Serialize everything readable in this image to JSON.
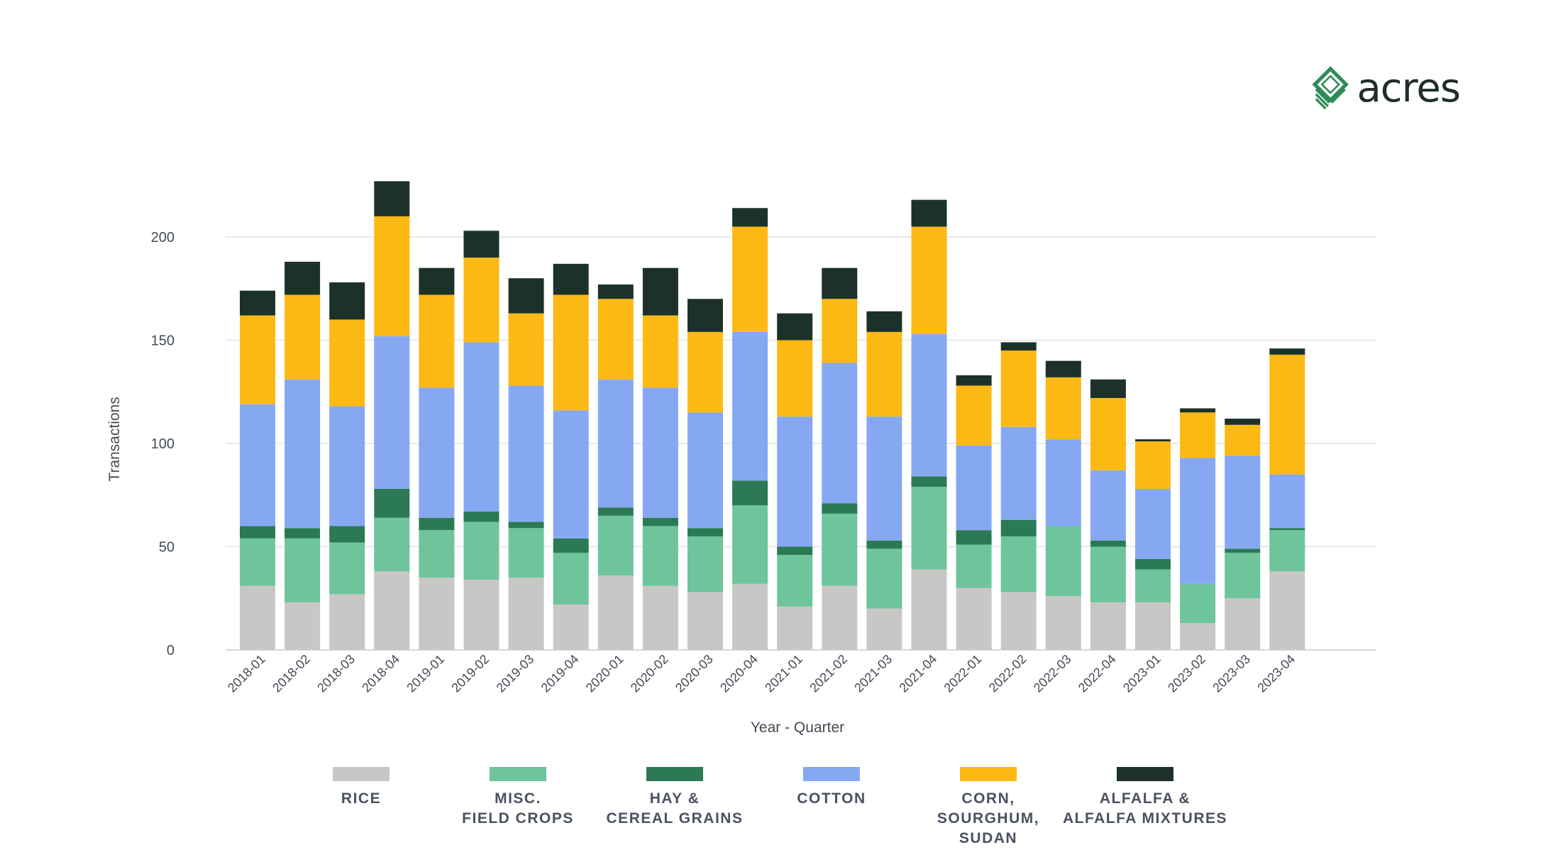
{
  "brand": {
    "name": "acres",
    "logo_color": "#2e8b57"
  },
  "chart_data": {
    "type": "bar",
    "stacked": true,
    "title": "",
    "xlabel": "Year - Quarter",
    "ylabel": "Transactions",
    "ylim": [
      0,
      230
    ],
    "yticks": [
      0,
      50,
      100,
      150,
      200
    ],
    "grid": true,
    "legend_position": "bottom",
    "categories": [
      "2018-01",
      "2018-02",
      "2018-03",
      "2018-04",
      "2019-01",
      "2019-02",
      "2019-03",
      "2019-04",
      "2020-01",
      "2020-02",
      "2020-03",
      "2020-04",
      "2021-01",
      "2021-02",
      "2021-03",
      "2021-04",
      "2022-01",
      "2022-02",
      "2022-03",
      "2022-04",
      "2023-01",
      "2023-02",
      "2023-03",
      "2023-04"
    ],
    "series": [
      {
        "name": "RICE",
        "label_lines": [
          "RICE"
        ],
        "color": "#c8c7c5",
        "values": [
          31,
          23,
          27,
          38,
          35,
          34,
          35,
          22,
          36,
          31,
          28,
          32,
          21,
          31,
          20,
          39,
          30,
          28,
          26,
          23,
          23,
          13,
          25,
          38
        ]
      },
      {
        "name": "MISC. FIELD CROPS",
        "label_lines": [
          "MISC.",
          "FIELD CROPS"
        ],
        "color": "#6ec49b",
        "values": [
          23,
          31,
          25,
          26,
          23,
          28,
          24,
          25,
          29,
          29,
          27,
          38,
          25,
          35,
          29,
          40,
          21,
          27,
          34,
          27,
          16,
          19,
          22,
          20
        ]
      },
      {
        "name": "HAY & CEREAL GRAINS",
        "label_lines": [
          "HAY &",
          "CEREAL GRAINS"
        ],
        "color": "#2b7a55",
        "values": [
          6,
          5,
          8,
          14,
          6,
          5,
          3,
          7,
          4,
          4,
          4,
          12,
          4,
          5,
          4,
          5,
          7,
          8,
          0,
          3,
          5,
          0,
          2,
          1
        ]
      },
      {
        "name": "COTTON",
        "label_lines": [
          "COTTON"
        ],
        "color": "#86a8f3",
        "values": [
          59,
          72,
          58,
          74,
          63,
          82,
          66,
          62,
          62,
          63,
          56,
          72,
          63,
          68,
          60,
          69,
          41,
          45,
          42,
          34,
          34,
          61,
          45,
          26
        ]
      },
      {
        "name": "CORN, SOURGHUM, SUDAN",
        "label_lines": [
          "CORN,",
          "SOURGHUM,",
          "SUDAN"
        ],
        "color": "#fdb913",
        "values": [
          43,
          41,
          42,
          58,
          45,
          41,
          35,
          56,
          39,
          35,
          39,
          51,
          37,
          31,
          41,
          52,
          29,
          37,
          30,
          35,
          23,
          22,
          15,
          58
        ]
      },
      {
        "name": "ALFALFA & ALFALFA MIXTURES",
        "label_lines": [
          "ALFALFA &",
          "ALFALFA MIXTURES"
        ],
        "color": "#1c3228",
        "values": [
          12,
          16,
          18,
          17,
          13,
          13,
          17,
          15,
          7,
          23,
          16,
          9,
          13,
          15,
          10,
          13,
          5,
          4,
          8,
          9,
          1,
          2,
          3,
          3
        ]
      }
    ]
  }
}
